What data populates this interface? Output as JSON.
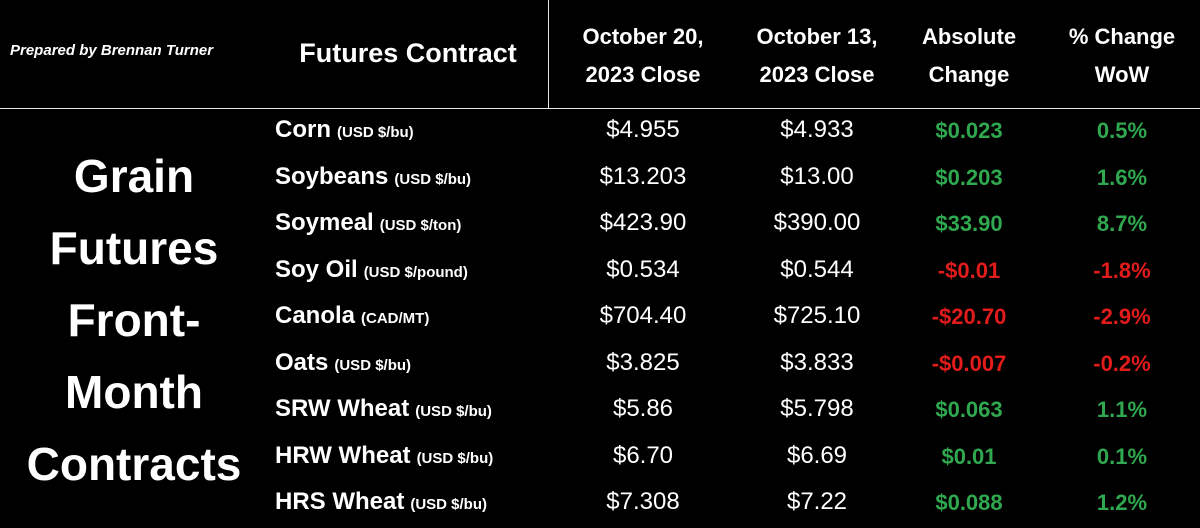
{
  "credit": "Prepared by Brennan Turner",
  "side_title": [
    "Grain",
    "Futures",
    "Front-",
    "Month",
    "Contracts"
  ],
  "headers": {
    "contract": "Futures Contract",
    "close_current": [
      "October 20,",
      "2023 Close"
    ],
    "close_previous": [
      "October 13,",
      "2023 Close"
    ],
    "abs_change": [
      "Absolute",
      "Change"
    ],
    "pct_change": [
      "% Change",
      "WoW"
    ]
  },
  "colors": {
    "positive": "#2fa84f",
    "negative": "#e21b1b",
    "background": "#000000",
    "text": "#ffffff"
  },
  "rows": [
    {
      "name": "Corn",
      "unit": "(USD $/bu)",
      "oct20": "$4.955",
      "oct13": "$4.933",
      "abs": "$0.023",
      "pct": "0.5%",
      "dir": "pos"
    },
    {
      "name": "Soybeans",
      "unit": "(USD $/bu)",
      "oct20": "$13.203",
      "oct13": "$13.00",
      "abs": "$0.203",
      "pct": "1.6%",
      "dir": "pos"
    },
    {
      "name": "Soymeal",
      "unit": "(USD $/ton)",
      "oct20": "$423.90",
      "oct13": "$390.00",
      "abs": "$33.90",
      "pct": "8.7%",
      "dir": "pos"
    },
    {
      "name": "Soy Oil",
      "unit": "(USD $/pound)",
      "oct20": "$0.534",
      "oct13": "$0.544",
      "abs": "-$0.01",
      "pct": "-1.8%",
      "dir": "neg"
    },
    {
      "name": "Canola",
      "unit": "(CAD/MT)",
      "oct20": "$704.40",
      "oct13": "$725.10",
      "abs": "-$20.70",
      "pct": "-2.9%",
      "dir": "neg"
    },
    {
      "name": "Oats",
      "unit": "(USD $/bu)",
      "oct20": "$3.825",
      "oct13": "$3.833",
      "abs": "-$0.007",
      "pct": "-0.2%",
      "dir": "neg"
    },
    {
      "name": "SRW Wheat",
      "unit": "(USD $/bu)",
      "oct20": "$5.86",
      "oct13": "$5.798",
      "abs": "$0.063",
      "pct": "1.1%",
      "dir": "pos"
    },
    {
      "name": "HRW Wheat",
      "unit": "(USD $/bu)",
      "oct20": "$6.70",
      "oct13": "$6.69",
      "abs": "$0.01",
      "pct": "0.1%",
      "dir": "pos"
    },
    {
      "name": "HRS Wheat",
      "unit": "(USD $/bu)",
      "oct20": "$7.308",
      "oct13": "$7.22",
      "abs": "$0.088",
      "pct": "1.2%",
      "dir": "pos"
    }
  ]
}
